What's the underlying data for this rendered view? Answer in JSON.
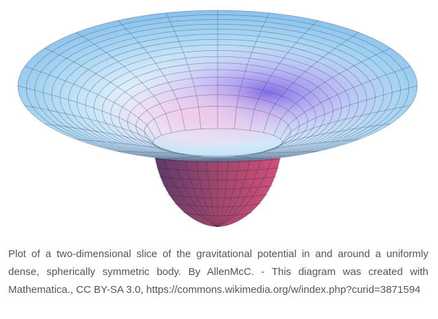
{
  "caption": "Plot of a two-dimensional slice of the gravitational potential in and around a uniformly dense, spherically symmetric body. By AllenMcC. - This diagram was created with Mathematica., CC BY-SA 3.0, https://commons.wikimedia.org/w/index.php?curid=3871594"
}
